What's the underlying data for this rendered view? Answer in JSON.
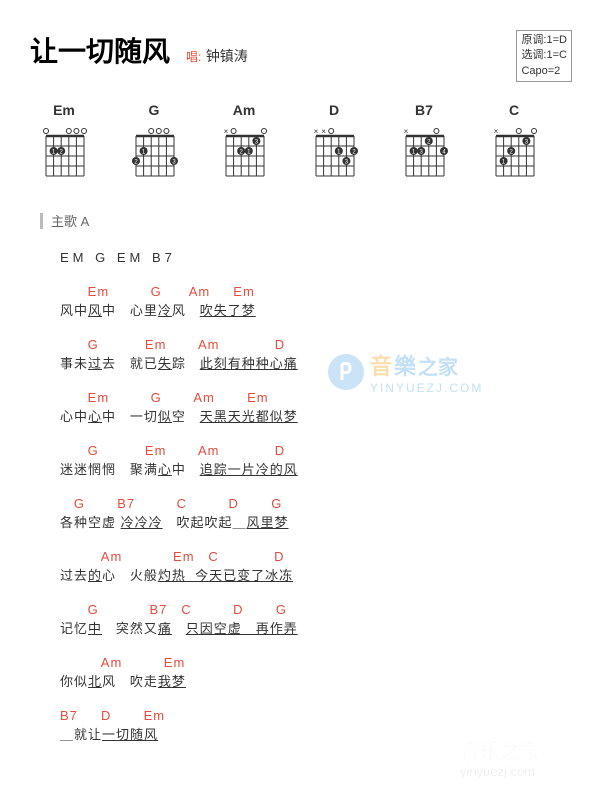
{
  "header": {
    "title": "让一切随风",
    "artist_label": "唱:",
    "artist_name": "钟镇涛",
    "key_info": {
      "orig_label": "原调:",
      "orig_value": "1=D",
      "sel_label": "选调:",
      "sel_value": "1=C",
      "capo": "Capo=2"
    }
  },
  "chords": [
    {
      "name": "Em",
      "dots": [
        {
          "s": 1,
          "f": 2
        },
        {
          "s": 2,
          "f": 2
        }
      ],
      "open": [
        0,
        3,
        4,
        5
      ],
      "mute": [],
      "barre": null
    },
    {
      "name": "G",
      "dots": [
        {
          "s": 1,
          "f": 2
        },
        {
          "s": 0,
          "f": 3
        },
        {
          "s": 5,
          "f": 3
        }
      ],
      "open": [
        2,
        3,
        4
      ],
      "mute": [],
      "barre": null
    },
    {
      "name": "Am",
      "dots": [
        {
          "s": 3,
          "f": 2
        },
        {
          "s": 2,
          "f": 2
        },
        {
          "s": 4,
          "f": 1
        }
      ],
      "open": [
        1,
        5
      ],
      "mute": [
        0
      ],
      "barre": null
    },
    {
      "name": "D",
      "dots": [
        {
          "s": 3,
          "f": 2
        },
        {
          "s": 5,
          "f": 2
        },
        {
          "s": 4,
          "f": 3
        }
      ],
      "open": [
        2
      ],
      "mute": [
        0,
        1
      ],
      "barre": null
    },
    {
      "name": "B7",
      "dots": [
        {
          "s": 1,
          "f": 2
        },
        {
          "s": 3,
          "f": 1
        },
        {
          "s": 2,
          "f": 2
        },
        {
          "s": 5,
          "f": 2
        }
      ],
      "open": [
        4
      ],
      "mute": [
        0
      ],
      "barre": null
    },
    {
      "name": "C",
      "dots": [
        {
          "s": 1,
          "f": 3
        },
        {
          "s": 2,
          "f": 2
        },
        {
          "s": 4,
          "f": 1
        }
      ],
      "open": [
        3,
        5
      ],
      "mute": [
        0
      ],
      "barre": null
    }
  ],
  "section": "主歌 A",
  "intro": "EM  G  EM  B7",
  "lines": [
    {
      "chords": "      Em         G      Am     Em",
      "lyrics_parts": [
        "风中",
        "风",
        "中   心里",
        "冷",
        "风   ",
        "吹失了梦"
      ]
    },
    {
      "chords": "      G          Em       Am            D",
      "lyrics_parts": [
        "事未",
        "过",
        "去   就已",
        "失",
        "踪   ",
        "此刻有种种心痛"
      ]
    },
    {
      "chords": "      Em         G       Am       Em",
      "lyrics_parts": [
        "心中",
        "心",
        "中   一切",
        "似",
        "空   ",
        "天黑天光都似梦"
      ]
    },
    {
      "chords": "      G          Em       Am            D",
      "lyrics_parts": [
        "迷迷惘惘   聚满",
        "心",
        "中   ",
        "追踪一片冷的风"
      ]
    },
    {
      "chords": "   G       B7         C         D       G",
      "lyrics_parts": [
        "各种空虚 ",
        "冷冷冷",
        "   吹起吹起＿",
        "风里梦"
      ]
    },
    {
      "chords": "         Am           Em   C            D",
      "lyrics_parts": [
        "过去",
        "的",
        "心   火般",
        "灼",
        "热  今天已变了冰冻"
      ]
    },
    {
      "chords": "      G           B7   C         D       G",
      "lyrics_parts": [
        "记忆",
        "中",
        "   突然又",
        "痛",
        "   ",
        "只因空虚＿再作弄"
      ]
    },
    {
      "chords": "         Am         Em",
      "lyrics_parts": [
        "你似",
        "北",
        "风   吹走",
        "我",
        "梦"
      ]
    },
    {
      "chords": "B7     D       Em",
      "lyrics_parts": [
        "＿就让",
        "一",
        "切随风"
      ]
    }
  ],
  "watermark": {
    "text_cn": "音樂之家",
    "text_url": "yinyuezj.com"
  },
  "colors": {
    "chord": "#e74c3c",
    "lyric": "#333333",
    "grid": "#333333",
    "wm_blue": "#5aa9e6",
    "wm_orange": "#f4a020",
    "wm_gray": "#cccccc"
  }
}
